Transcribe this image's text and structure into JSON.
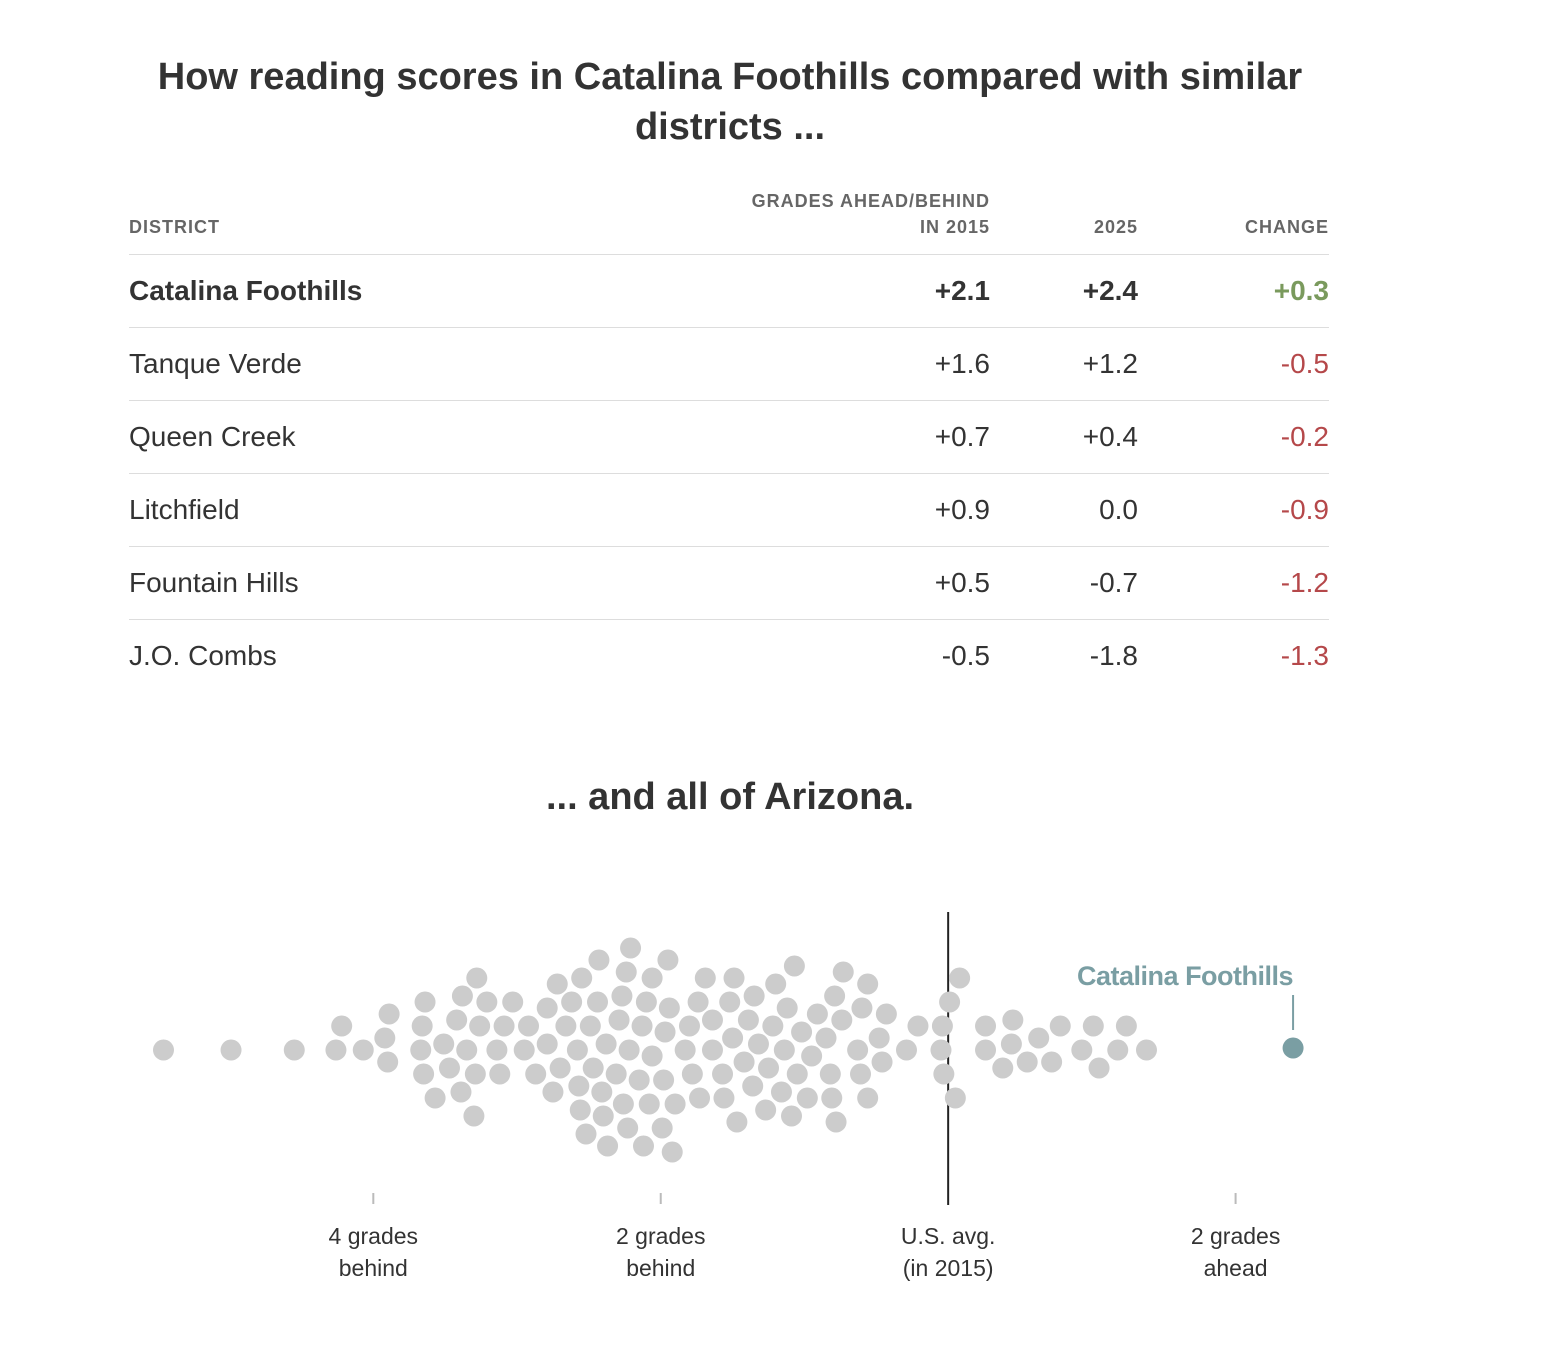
{
  "title": "How reading scores in Catalina Foothills compared with similar districts ...",
  "table": {
    "headers": [
      "DISTRICT",
      "GRADES AHEAD/BEHIND\nIN 2015",
      "2025",
      "CHANGE"
    ],
    "rows": [
      {
        "district": "Catalina Foothills",
        "y2015": "+2.1",
        "y2025": "+2.4",
        "change": "+0.3",
        "change_color": "#7a9a5d",
        "bold": true
      },
      {
        "district": "Tanque Verde",
        "y2015": "+1.6",
        "y2025": "+1.2",
        "change": "-0.5",
        "change_color": "#b5484a",
        "bold": false
      },
      {
        "district": "Queen Creek",
        "y2015": "+0.7",
        "y2025": "+0.4",
        "change": "-0.2",
        "change_color": "#b5484a",
        "bold": false
      },
      {
        "district": "Litchfield",
        "y2015": "+0.9",
        "y2025": "0.0",
        "change": "-0.9",
        "change_color": "#b5484a",
        "bold": false
      },
      {
        "district": "Fountain Hills",
        "y2015": "+0.5",
        "y2025": "-0.7",
        "change": "-1.2",
        "change_color": "#b5484a",
        "bold": false
      },
      {
        "district": "J.O. Combs",
        "y2015": "-0.5",
        "y2025": "-1.8",
        "change": "-1.3",
        "change_color": "#b5484a",
        "bold": false
      }
    ]
  },
  "chart_data": {
    "type": "beeswarm",
    "title": "... and all of Arizona.",
    "color": "#cccccc",
    "x": [
      -5.46,
      -4.99,
      -4.55,
      -4.26,
      -4.22,
      -4.07,
      -3.92,
      -3.9,
      -3.89,
      -3.67,
      -3.66,
      -3.65,
      -3.64,
      -3.57,
      -3.51,
      -3.47,
      -3.42,
      -3.39,
      -3.38,
      -3.35,
      -3.3,
      -3.29,
      -3.28,
      -3.26,
      -3.21,
      -3.14,
      -3.12,
      -3.09,
      -3.03,
      -2.95,
      -2.92,
      -2.87,
      -2.79,
      -2.79,
      -2.75,
      -2.72,
      -2.7,
      -2.66,
      -2.62,
      -2.58,
      -2.57,
      -2.56,
      -2.55,
      -2.52,
      -2.49,
      -2.47,
      -2.44,
      -2.43,
      -2.41,
      -2.4,
      -2.38,
      -2.37,
      -2.31,
      -2.29,
      -2.27,
      -2.26,
      -2.24,
      -2.23,
      -2.22,
      -2.21,
      -2.15,
      -2.13,
      -2.12,
      -2.1,
      -2.08,
      -2.06,
      -2.06,
      -1.99,
      -1.98,
      -1.97,
      -1.95,
      -1.94,
      -1.92,
      -1.9,
      -1.83,
      -1.8,
      -1.78,
      -1.74,
      -1.73,
      -1.69,
      -1.64,
      -1.64,
      -1.57,
      -1.56,
      -1.52,
      -1.5,
      -1.49,
      -1.47,
      -1.42,
      -1.39,
      -1.36,
      -1.35,
      -1.32,
      -1.27,
      -1.25,
      -1.22,
      -1.2,
      -1.16,
      -1.14,
      -1.12,
      -1.09,
      -1.07,
      -1.05,
      -1.02,
      -0.98,
      -0.95,
      -0.91,
      -0.85,
      -0.82,
      -0.81,
      -0.79,
      -0.78,
      -0.74,
      -0.73,
      -0.63,
      -0.61,
      -0.6,
      -0.56,
      -0.56,
      -0.48,
      -0.46,
      -0.43,
      -0.29,
      -0.21,
      -0.05,
      -0.04,
      -0.03,
      0.01,
      0.05,
      0.08,
      0.26,
      0.26,
      0.38,
      0.44,
      0.45,
      0.55,
      0.63,
      0.72,
      0.78,
      0.93,
      1.01,
      1.05,
      1.18,
      1.24,
      1.38
    ],
    "highlight": {
      "label": "Catalina Foothills",
      "x": 2.4,
      "color": "#7a9ea3"
    },
    "xlim": [
      -5.7,
      2.65
    ],
    "xticks": [
      {
        "value": -4,
        "label": "4 grades\nbehind"
      },
      {
        "value": -2,
        "label": "2 grades\nbehind"
      },
      {
        "value": 0,
        "label": "U.S. avg.\n(in 2015)"
      },
      {
        "value": 2,
        "label": "2 grades\nahead"
      }
    ]
  }
}
